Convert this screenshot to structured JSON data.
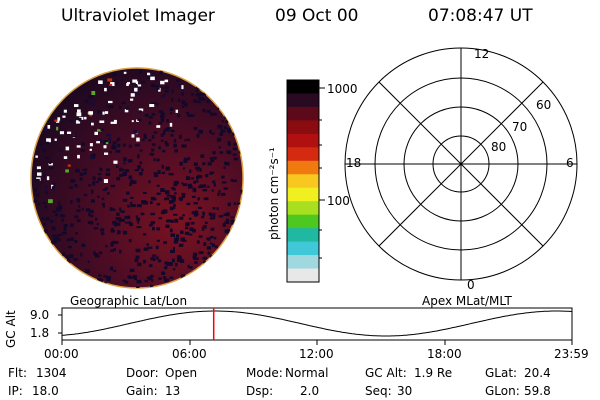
{
  "header": {
    "title": "Ultraviolet Imager",
    "date": "09 Oct 00",
    "time": "07:08:47 UT"
  },
  "colorbar": {
    "unit_label": "photon cm⁻²s⁻¹",
    "ticks": [
      "1000",
      "100"
    ],
    "colors": [
      "#000000",
      "#2a0a22",
      "#5c0a1a",
      "#8a0c10",
      "#b01010",
      "#d42a10",
      "#f07a10",
      "#f8c820",
      "#f0f020",
      "#a8e020",
      "#4cc820",
      "#20b8a0",
      "#40c8d8",
      "#a0d8e0",
      "#e8e8e8"
    ]
  },
  "polar": {
    "mlt_labels": {
      "top": "12",
      "left": "18",
      "right": "6",
      "bottom": "0"
    },
    "lat_labels": [
      "60",
      "70",
      "80"
    ]
  },
  "orbit": {
    "left_label": "Geographic Lat/Lon",
    "right_label": "Apex MLat/MLT",
    "y_axis_title": "GC Alt",
    "y_ticks": [
      "9.0",
      "1.8"
    ],
    "x_ticks": [
      "00:00",
      "06:00",
      "12:00",
      "18:00",
      "23:59"
    ],
    "marker_time": "07:08",
    "marker_color": "#ff0000"
  },
  "status": {
    "row1": [
      {
        "label": "Flt:",
        "value": "1304"
      },
      {
        "label": "Door:",
        "value": "Open"
      },
      {
        "label": "Mode:",
        "value": "Normal"
      },
      {
        "label": "GC Alt:",
        "value": "1.9 Re"
      },
      {
        "label": "GLat:",
        "value": "20.4"
      }
    ],
    "row2": [
      {
        "label": "IP:",
        "value": "18.0"
      },
      {
        "label": "Gain:",
        "value": "13"
      },
      {
        "label": "Dsp:",
        "value": "2.0"
      },
      {
        "label": "Seq:",
        "value": "30"
      },
      {
        "label": "GLon:",
        "value": "59.8"
      }
    ]
  }
}
